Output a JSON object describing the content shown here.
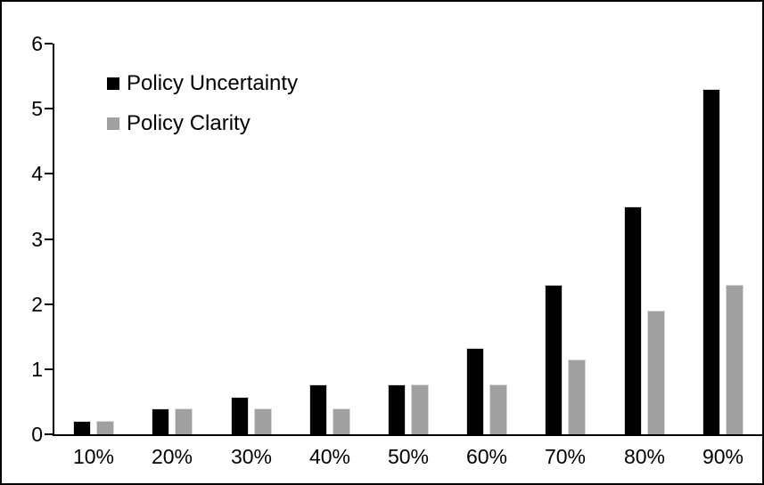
{
  "figure": {
    "background_color": "#ffffff",
    "border_color": "#000000"
  },
  "chart_data": {
    "type": "bar",
    "title": "",
    "xlabel": "",
    "ylabel": "",
    "categories": [
      "10%",
      "20%",
      "30%",
      "40%",
      "50%",
      "60%",
      "70%",
      "80%",
      "90%"
    ],
    "series": [
      {
        "name": "Policy Uncertainty",
        "color": "#000000",
        "values": [
          0.2,
          0.39,
          0.57,
          0.77,
          0.77,
          1.33,
          2.3,
          3.5,
          5.3
        ]
      },
      {
        "name": "Policy Clarity",
        "color": "#a0a0a0",
        "values": [
          0.2,
          0.39,
          0.39,
          0.39,
          0.77,
          0.77,
          1.15,
          1.9,
          2.3
        ]
      }
    ],
    "ylim": [
      0,
      6
    ],
    "yticks": [
      0,
      1,
      2,
      3,
      4,
      5,
      6
    ],
    "grid": "off",
    "legend_position": "top-left-inside",
    "bar_outline_color": "#d9d9d9"
  }
}
